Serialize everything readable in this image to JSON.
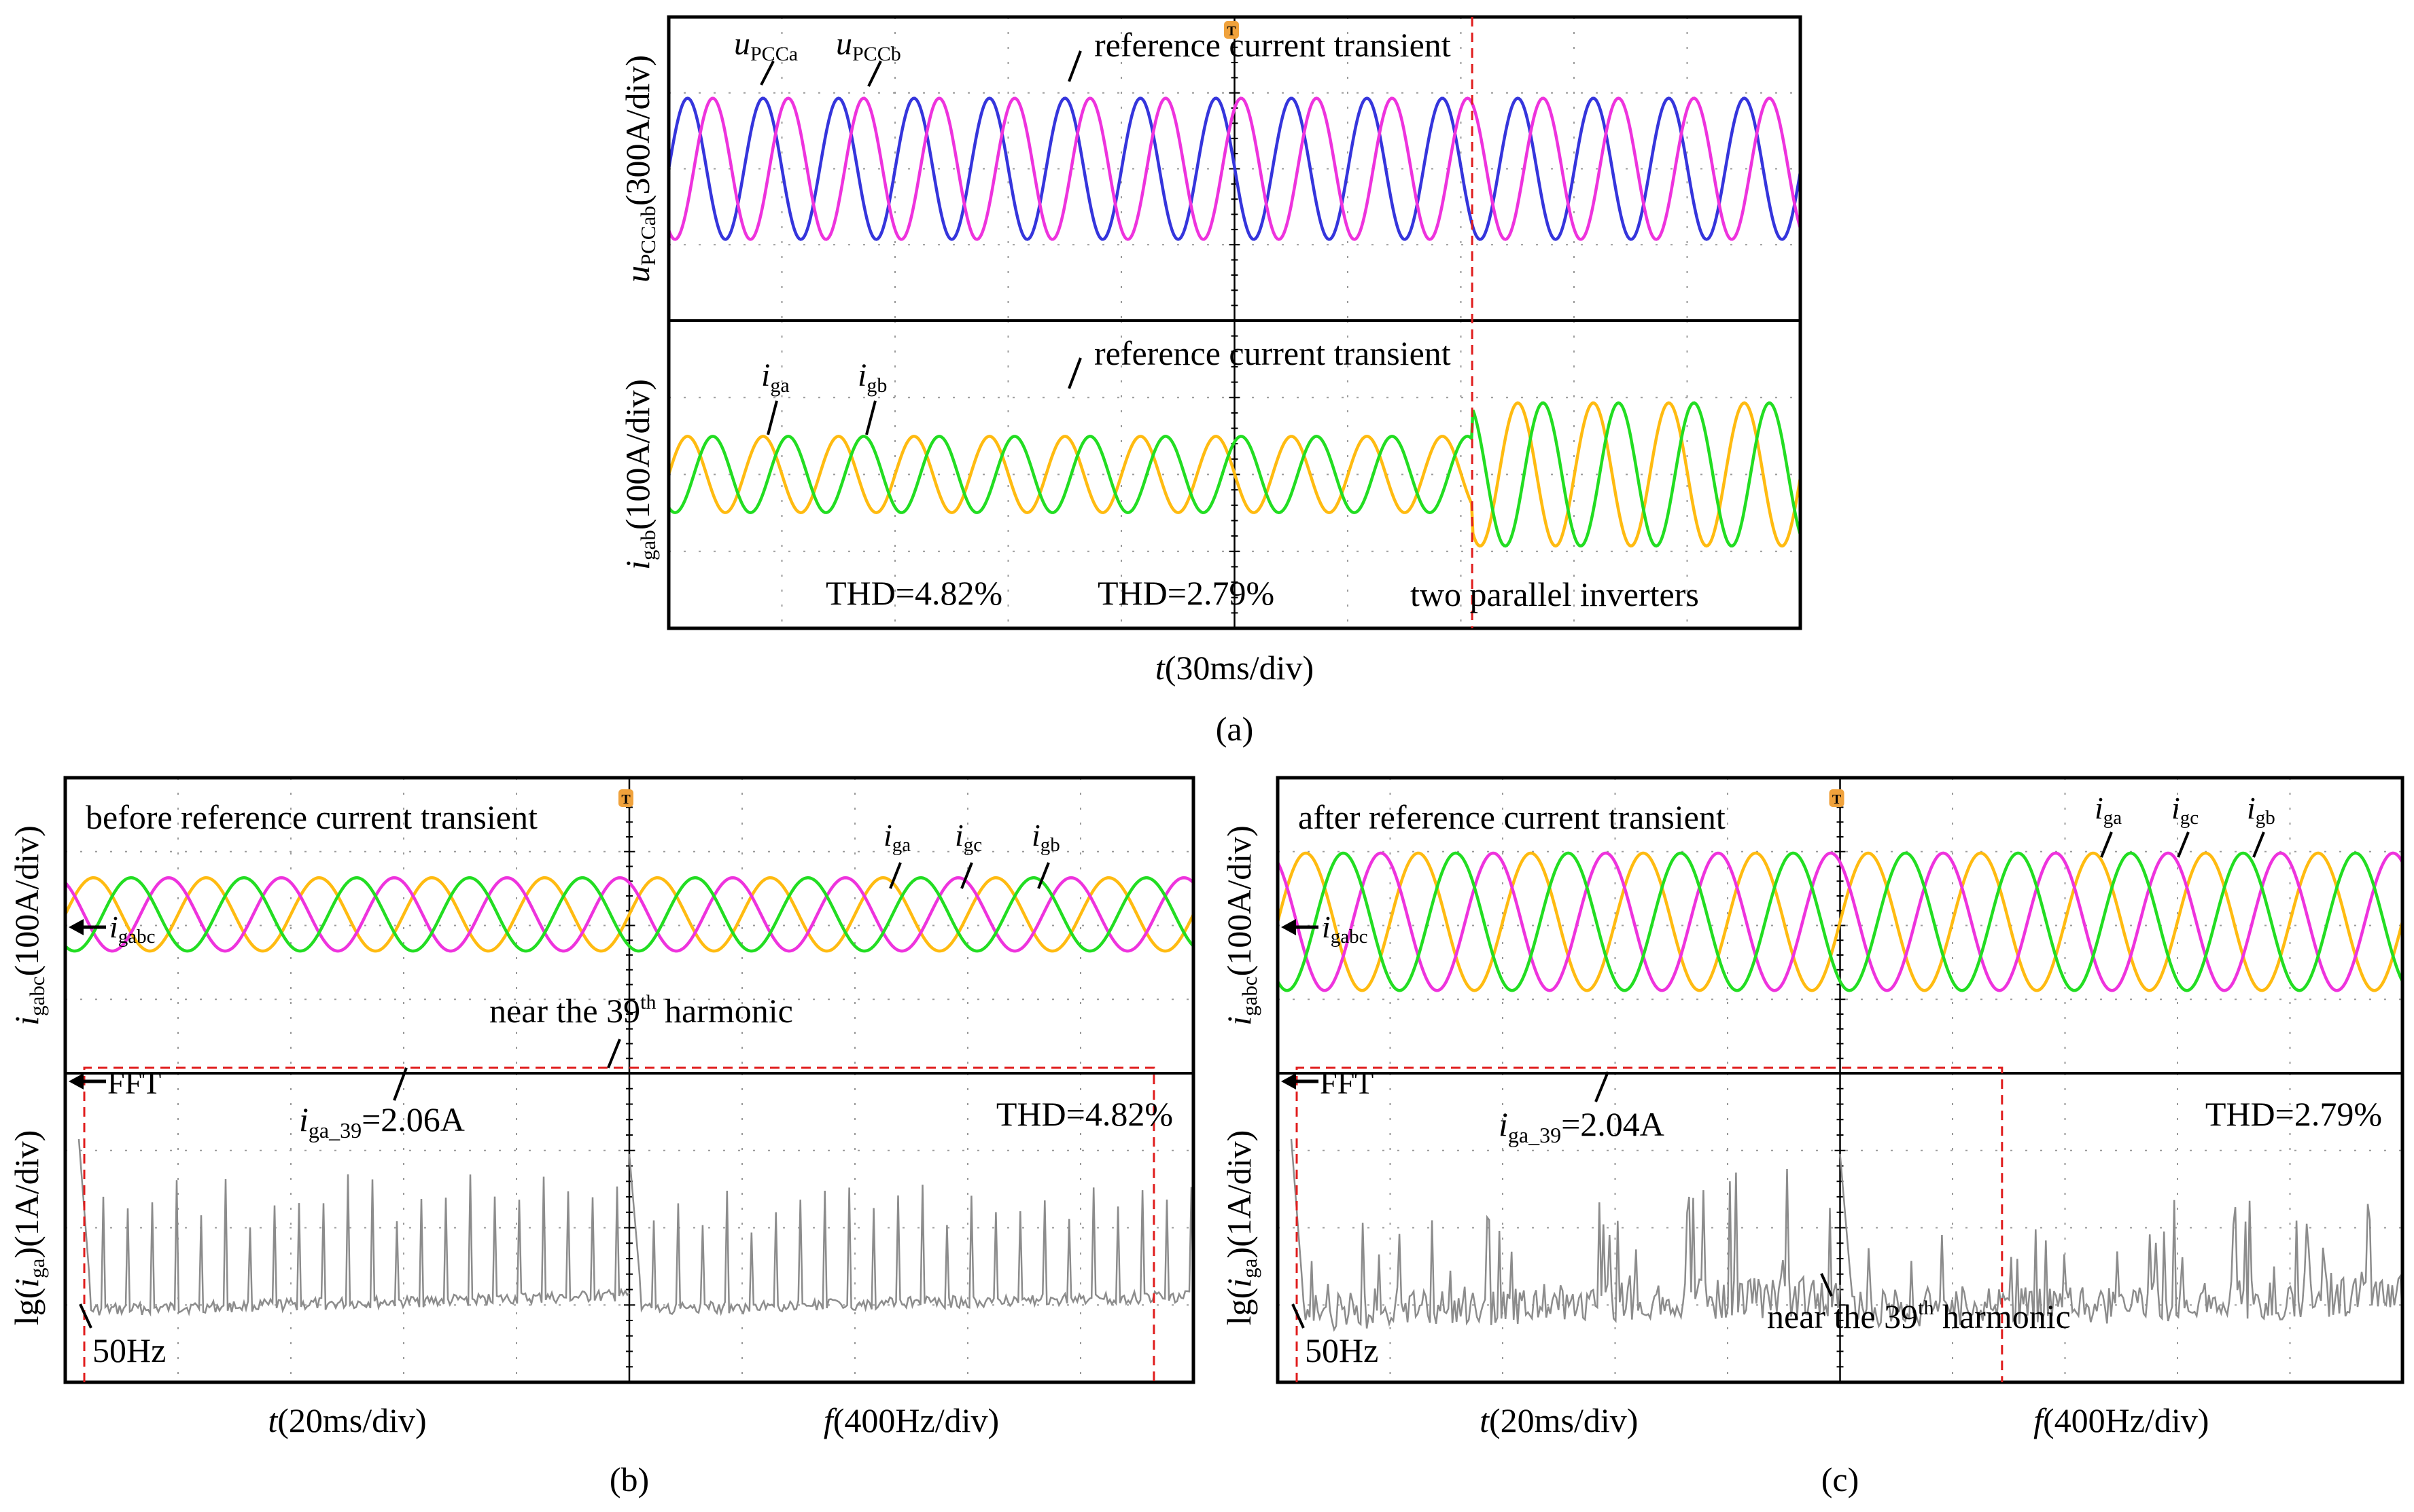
{
  "colors": {
    "blue": "#3535dc",
    "magenta": "#ee33dd",
    "yellow": "#ffbb11",
    "green": "#22dd22",
    "fft": "#8c8c8c",
    "marker_red": "#e01c1c",
    "trigger_orange": "#f0a23c"
  },
  "chart_data": [
    {
      "id": "a",
      "type": "line",
      "caption": "(a)",
      "xlabel": "t(30ms/div)",
      "divisions": {
        "x": 10,
        "y": 8
      },
      "reference_transient_time_div": 7.1,
      "annotation_transient": "reference current transient",
      "panels": [
        {
          "ylabel": "u_PCCab(300A/div)",
          "ylabel_parts": {
            "main": "u",
            "sub": "PCCab",
            "unit": "(300A/div)"
          },
          "series": [
            {
              "name": "u_PCCa",
              "label_main": "u",
              "label_sub": "PCCa",
              "color": "blue",
              "amplitude_div": 1.5,
              "period_div": 0.667,
              "phase_deg": 0
            },
            {
              "name": "u_PCCb",
              "label_main": "u",
              "label_sub": "PCCb",
              "color": "magenta",
              "amplitude_div": 1.5,
              "period_div": 0.667,
              "phase_deg": -120
            }
          ]
        },
        {
          "ylabel": "i_gab(100A/div)",
          "ylabel_parts": {
            "main": "i",
            "sub": "gab",
            "unit": "(100A/div)"
          },
          "series": [
            {
              "name": "i_ga",
              "label_main": "i",
              "label_sub": "ga",
              "color": "yellow",
              "amplitude_before_div": 0.8,
              "amplitude_after_div": 1.5,
              "period_div": 0.667,
              "phase_deg": 0
            },
            {
              "name": "i_gb",
              "label_main": "i",
              "label_sub": "gb",
              "color": "green",
              "amplitude_before_div": 0.8,
              "amplitude_after_div": 1.5,
              "period_div": 0.667,
              "phase_deg": -120
            }
          ],
          "thd_before": "THD=4.82%",
          "thd_after": "THD=2.79%",
          "note": "two parallel inverters"
        }
      ]
    },
    {
      "id": "b",
      "type": "line",
      "caption": "(b)",
      "xlabel_left": "t(20ms/div)",
      "xlabel_right": "f(400Hz/div)",
      "title": "before reference current transient",
      "panels": [
        {
          "ylabel_parts": {
            "main": "i",
            "sub": "gabc",
            "unit": "(100A/div)"
          },
          "marker": "i_gabc",
          "marker_parts": {
            "main": "i",
            "sub": "gabc"
          },
          "series": [
            {
              "name": "i_ga",
              "label_main": "i",
              "label_sub": "ga",
              "color": "yellow",
              "amplitude_div": 0.8,
              "period_div": 1.0,
              "phase_deg": 0
            },
            {
              "name": "i_gc",
              "label_main": "i",
              "label_sub": "gc",
              "color": "magenta",
              "amplitude_div": 0.8,
              "period_div": 1.0,
              "phase_deg": 120
            },
            {
              "name": "i_gb",
              "label_main": "i",
              "label_sub": "gb",
              "color": "green",
              "amplitude_div": 0.8,
              "period_div": 1.0,
              "phase_deg": -120
            }
          ],
          "harmonic_note": {
            "pre": "near the 39",
            "sup": "th",
            "post": " harmonic"
          }
        },
        {
          "ylabel_parts": {
            "pre": "lg(",
            "main": "i",
            "sub": "ga",
            "post": ")(1A/div)"
          },
          "marker": "FFT",
          "spectrum": "fft",
          "fundamental": "50Hz",
          "harmonic_39_value": {
            "main": "i",
            "sub": "ga_39",
            "post": "=2.06A"
          },
          "thd": "THD=4.82%"
        }
      ]
    },
    {
      "id": "c",
      "type": "line",
      "caption": "(c)",
      "xlabel_left": "t(20ms/div)",
      "xlabel_right": "f(400Hz/div)",
      "title": "after reference current transient",
      "panels": [
        {
          "ylabel_parts": {
            "main": "i",
            "sub": "gabc",
            "unit": "(100A/div)"
          },
          "marker": "i_gabc",
          "marker_parts": {
            "main": "i",
            "sub": "gabc"
          },
          "series": [
            {
              "name": "i_ga",
              "label_main": "i",
              "label_sub": "ga",
              "color": "yellow",
              "amplitude_div": 1.5,
              "period_div": 1.0,
              "phase_deg": 0
            },
            {
              "name": "i_gc",
              "label_main": "i",
              "label_sub": "gc",
              "color": "magenta",
              "amplitude_div": 1.5,
              "period_div": 1.0,
              "phase_deg": 120
            },
            {
              "name": "i_gb",
              "label_main": "i",
              "label_sub": "gb",
              "color": "green",
              "amplitude_div": 1.5,
              "period_div": 1.0,
              "phase_deg": -120
            }
          ]
        },
        {
          "ylabel_parts": {
            "pre": "lg(",
            "main": "i",
            "sub": "ga",
            "post": ")(1A/div)"
          },
          "marker": "FFT",
          "spectrum": "fft",
          "fundamental": "50Hz",
          "harmonic_39_value": {
            "main": "i",
            "sub": "ga_39",
            "post": "=2.04A"
          },
          "harmonic_note": {
            "pre": "near the 39",
            "sup": "th",
            "post": " harmonic"
          },
          "thd": "THD=2.79%"
        }
      ]
    }
  ]
}
